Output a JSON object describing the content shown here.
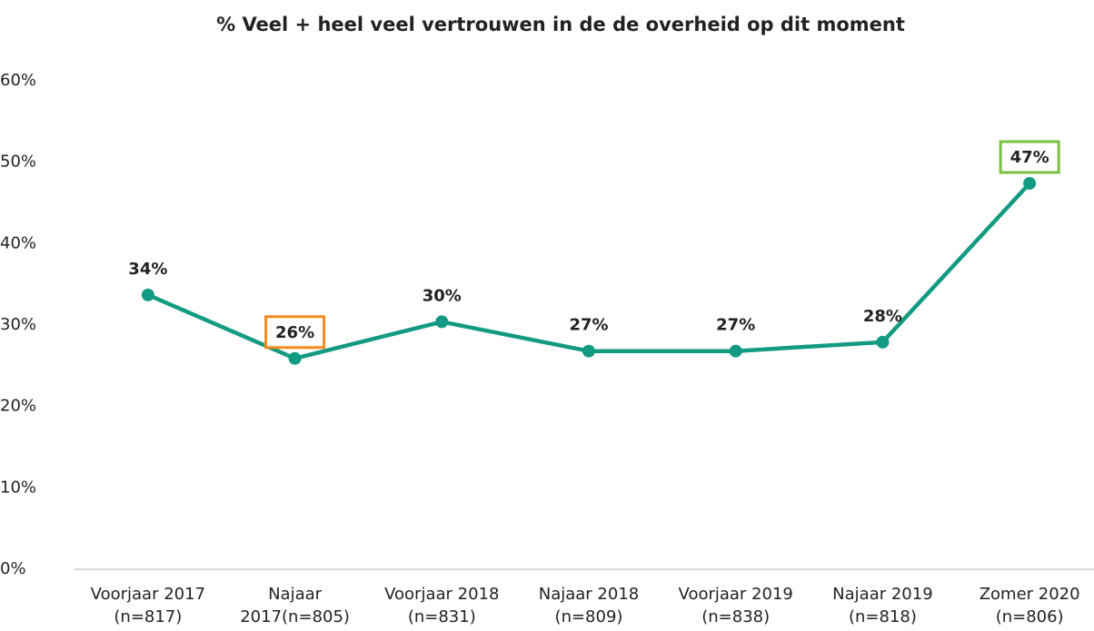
{
  "chart_data": {
    "type": "line",
    "title": "% Veel + heel veel vertrouwen in de de overheid op dit moment",
    "categories": [
      [
        "Voorjaar 2017",
        "(n=817)"
      ],
      [
        "Najaar",
        "2017(n=805)"
      ],
      [
        "Voorjaar 2018",
        "(n=831)"
      ],
      [
        "Najaar 2018",
        "(n=809)"
      ],
      [
        "Voorjaar 2019",
        "(n=838)"
      ],
      [
        "Najaar 2019",
        "(n=818)"
      ],
      [
        "Zomer 2020",
        "(n=806)"
      ]
    ],
    "series": [
      {
        "name": "% Veel + heel veel vertrouwen",
        "color": "#139a82",
        "values": [
          33.7,
          25.9,
          30.4,
          26.8,
          26.8,
          27.9,
          47.4
        ],
        "value_labels": [
          "34%",
          "26%",
          "30%",
          "27%",
          "27%",
          "28%",
          "47%"
        ],
        "label_boxes": [
          null,
          "#f28c1e",
          null,
          null,
          null,
          null,
          "#7ac143"
        ]
      }
    ],
    "ylim": [
      0,
      60
    ],
    "yticks": [
      {
        "value": 0,
        "label": "0%"
      },
      {
        "value": 10,
        "label": "10%"
      },
      {
        "value": 20,
        "label": "20%"
      },
      {
        "value": 30,
        "label": "30%"
      },
      {
        "value": 40,
        "label": "40%"
      },
      {
        "value": 50,
        "label": "50%"
      },
      {
        "value": 60,
        "label": "60%"
      }
    ],
    "grid": false
  }
}
